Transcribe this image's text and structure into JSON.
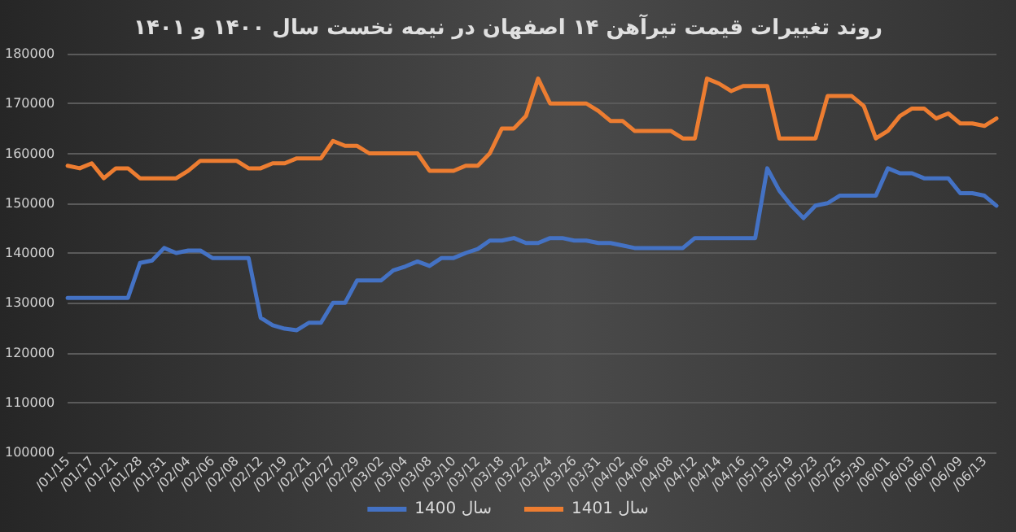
{
  "chart_data": {
    "type": "line",
    "title": "روند تغییرات قیمت تیرآهن ۱۴ اصفهان در نیمه نخست سال ۱۴۰۰ و ۱۴۰۱",
    "categories": [
      "/01/15",
      null,
      "/01/17",
      null,
      "/01/21",
      null,
      "/01/28",
      null,
      "/01/31",
      null,
      "/02/04",
      null,
      "/02/06",
      null,
      "/02/08",
      null,
      "/02/12",
      null,
      "/02/19",
      null,
      "/02/21",
      null,
      "/02/27",
      null,
      "/02/29",
      null,
      "/03/02",
      null,
      "/03/04",
      null,
      "/03/08",
      null,
      "/03/10",
      null,
      "/03/12",
      null,
      "/03/18",
      null,
      "/03/22",
      null,
      "/03/24",
      null,
      "/03/26",
      null,
      "/03/31",
      null,
      "/04/02",
      null,
      "/04/06",
      null,
      "/04/08",
      null,
      "/04/12",
      null,
      "/04/14",
      null,
      "/04/16",
      null,
      "/05/13",
      null,
      "/05/19",
      null,
      "/05/23",
      null,
      "/05/25",
      null,
      "/05/30",
      null,
      "/06/01",
      null,
      "/06/03",
      null,
      "/06/07",
      null,
      "/06/09",
      null,
      "/06/13",
      null
    ],
    "series": [
      {
        "name": "سال 1400",
        "color": "#4472c4",
        "values": [
          131000,
          131000,
          131000,
          131000,
          131000,
          131000,
          138000,
          138500,
          141000,
          140000,
          140500,
          140500,
          139000,
          139000,
          139000,
          139000,
          127000,
          125500,
          124800,
          124500,
          126000,
          126000,
          130000,
          130000,
          134500,
          134500,
          134500,
          136500,
          137300,
          138300,
          137400,
          139000,
          139000,
          140000,
          140800,
          142500,
          142500,
          143000,
          142000,
          142000,
          143000,
          143000,
          142500,
          142500,
          142000,
          142000,
          141500,
          141000,
          141000,
          141000,
          141000,
          141000,
          143000,
          143000,
          143000,
          143000,
          143000,
          143000,
          157000,
          152500,
          149500,
          147000,
          149500,
          150000,
          151500,
          151500,
          151500,
          151500,
          157000,
          156000,
          156000,
          155000,
          155000,
          155000,
          152000,
          152000,
          151500,
          149500
        ]
      },
      {
        "name": "سال 1401",
        "color": "#ed7d31",
        "values": [
          157500,
          157000,
          158000,
          155000,
          157000,
          157000,
          155000,
          155000,
          155000,
          155000,
          156500,
          158500,
          158500,
          158500,
          158500,
          157000,
          157000,
          158000,
          158000,
          159000,
          159000,
          159000,
          162500,
          161500,
          161500,
          160000,
          160000,
          160000,
          160000,
          160000,
          156500,
          156500,
          156500,
          157500,
          157500,
          160000,
          165000,
          165000,
          167500,
          175000,
          170000,
          170000,
          170000,
          170000,
          168500,
          166500,
          166500,
          164500,
          164500,
          164500,
          164500,
          163000,
          163000,
          175000,
          174000,
          172500,
          173500,
          173500,
          173500,
          163000,
          163000,
          163000,
          163000,
          171500,
          171500,
          171500,
          169500,
          163000,
          164500,
          167500,
          169000,
          169000,
          167000,
          168000,
          166000,
          166000,
          165500,
          167000
        ]
      }
    ],
    "ylim": [
      100000,
      180000
    ],
    "yticks": [
      100000,
      110000,
      120000,
      130000,
      140000,
      150000,
      160000,
      170000,
      180000
    ],
    "grid": "y",
    "legend": "bottom",
    "marker": "none",
    "line_style": "solid"
  }
}
